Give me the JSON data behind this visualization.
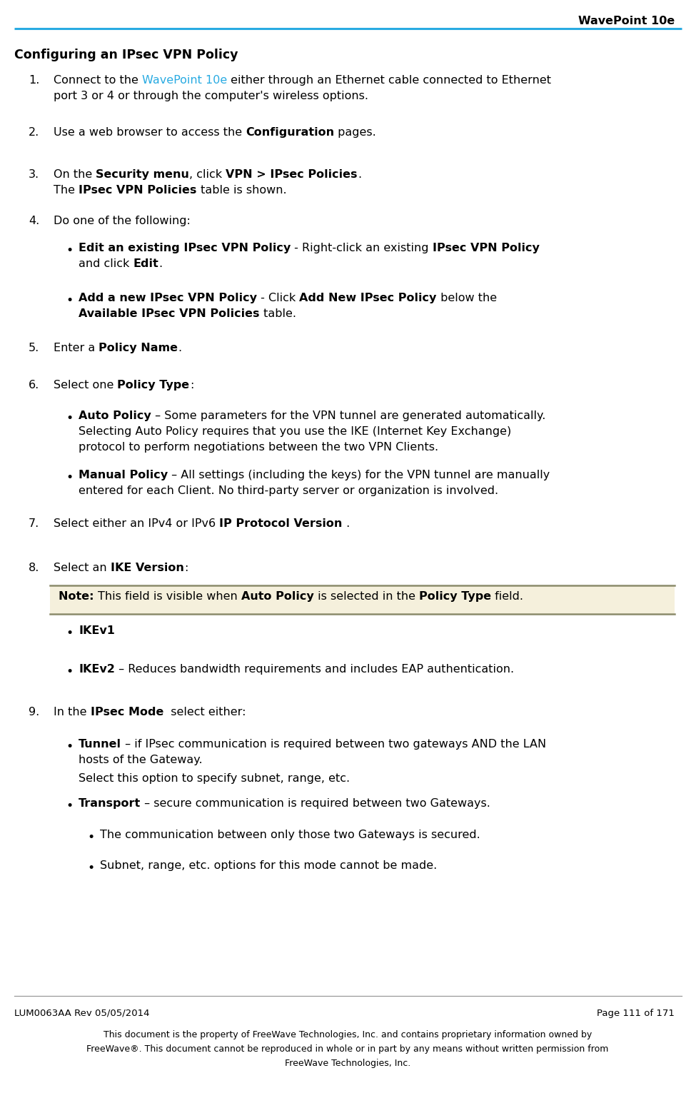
{
  "header_title": "WavePoint 10e",
  "header_line_color": "#29ABE2",
  "page_bg": "#ffffff",
  "section_title": "Configuring an IPsec VPN Policy",
  "footer_left": "LUM0063AA Rev 05/05/2014",
  "footer_right": "Page 111 of 171",
  "footer_line1": "This document is the property of FreeWave Technologies, Inc. and contains proprietary information owned by",
  "footer_line2": "FreeWave®. This document cannot be reproduced in whole or in part by any means without written permission from",
  "footer_line3": "FreeWave Technologies, Inc.",
  "wavepoint_color": "#29ABE2",
  "note_bg": "#F5F0DC",
  "note_border": "#8B8B6B",
  "lm_num": 40,
  "lm_step": 75,
  "lm_bullet": 110,
  "lm_subbullet": 140,
  "base_fs": 11.5,
  "title_fs": 12.5,
  "header_fs": 11.5,
  "footer_fs": 9.5
}
